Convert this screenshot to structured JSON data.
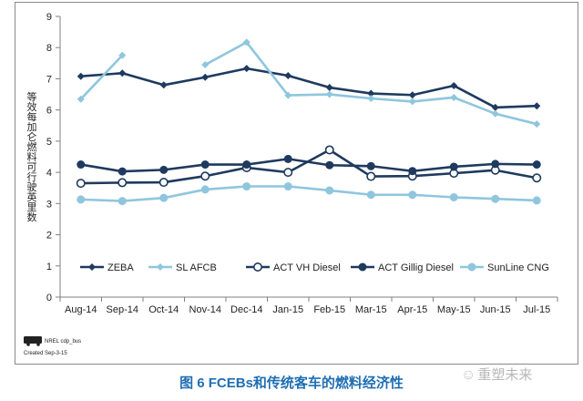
{
  "chart_data": {
    "type": "line",
    "categories": [
      "Aug-14",
      "Sep-14",
      "Oct-14",
      "Nov-14",
      "Dec-14",
      "Jan-15",
      "Feb-15",
      "Mar-15",
      "Apr-15",
      "May-15",
      "Jun-15",
      "Jul-15"
    ],
    "ylabel": "等效每加仑燃料可行驶英里数",
    "ylim": [
      0,
      9
    ],
    "yticks": [
      0,
      1,
      2,
      3,
      4,
      5,
      6,
      7,
      8,
      9
    ],
    "grid": false,
    "legend_position": "bottom-inside",
    "series": [
      {
        "name": "ZEBA",
        "color": "#1f3a5f",
        "marker": "diamond",
        "values": [
          7.08,
          7.18,
          6.8,
          7.05,
          7.33,
          7.1,
          6.72,
          6.53,
          6.48,
          6.78,
          6.08,
          6.13
        ]
      },
      {
        "name": "SL AFCB",
        "color": "#8fc6de",
        "marker": "diamond",
        "values": [
          6.35,
          7.75,
          null,
          7.45,
          8.17,
          6.47,
          6.5,
          6.37,
          6.27,
          6.4,
          5.88,
          5.55
        ]
      },
      {
        "name": "ACT VH Diesel",
        "color": "#1f3a5f",
        "marker": "open-circle",
        "values": [
          3.65,
          3.67,
          3.68,
          3.88,
          4.15,
          4.0,
          4.72,
          3.87,
          3.88,
          3.97,
          4.07,
          3.82
        ]
      },
      {
        "name": "ACT Gillig Diesel",
        "color": "#1f3a5f",
        "marker": "circle",
        "values": [
          4.25,
          4.03,
          4.08,
          4.25,
          4.25,
          4.43,
          4.23,
          4.2,
          4.04,
          4.18,
          4.27,
          4.25
        ]
      },
      {
        "name": "SunLine CNG",
        "color": "#8fc6de",
        "marker": "circle",
        "values": [
          3.13,
          3.08,
          3.18,
          3.45,
          3.55,
          3.55,
          3.42,
          3.28,
          3.28,
          3.2,
          3.15,
          3.1
        ]
      }
    ]
  },
  "footnote": {
    "logo_label": "NREL cdp_bus",
    "created": "Created Sep-3-15"
  },
  "caption": "图 6 FCEBs和传统客车的燃料经济性",
  "watermark": "重塑未来"
}
